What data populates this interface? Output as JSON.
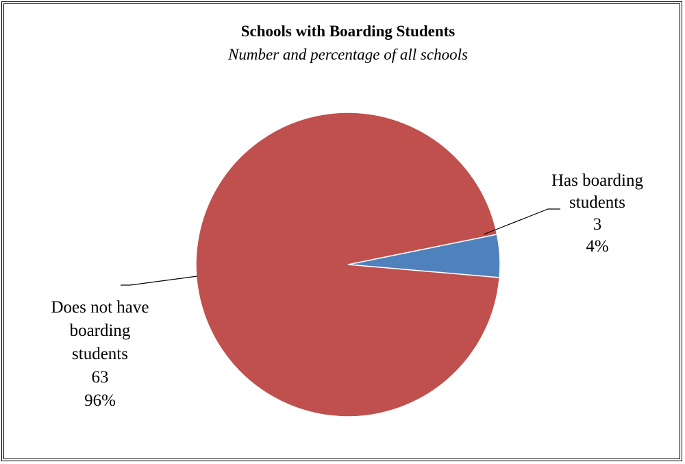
{
  "chart_data": {
    "type": "pie",
    "title": "Schools with Boarding Students",
    "subtitle": "Number and percentage of all schools",
    "start_angle_deg": 0,
    "slices": [
      {
        "label_lines": [
          "Has boarding",
          "students"
        ],
        "value": 3,
        "value_text": "3",
        "percent": 4,
        "percent_text": "4%",
        "color": "#4F81BD"
      },
      {
        "label_lines": [
          "Does not have",
          "boarding",
          "students"
        ],
        "value": 63,
        "value_text": "63",
        "percent": 96,
        "percent_text": "96%",
        "color": "#C0504D"
      }
    ],
    "legend": "none",
    "grid": false
  }
}
